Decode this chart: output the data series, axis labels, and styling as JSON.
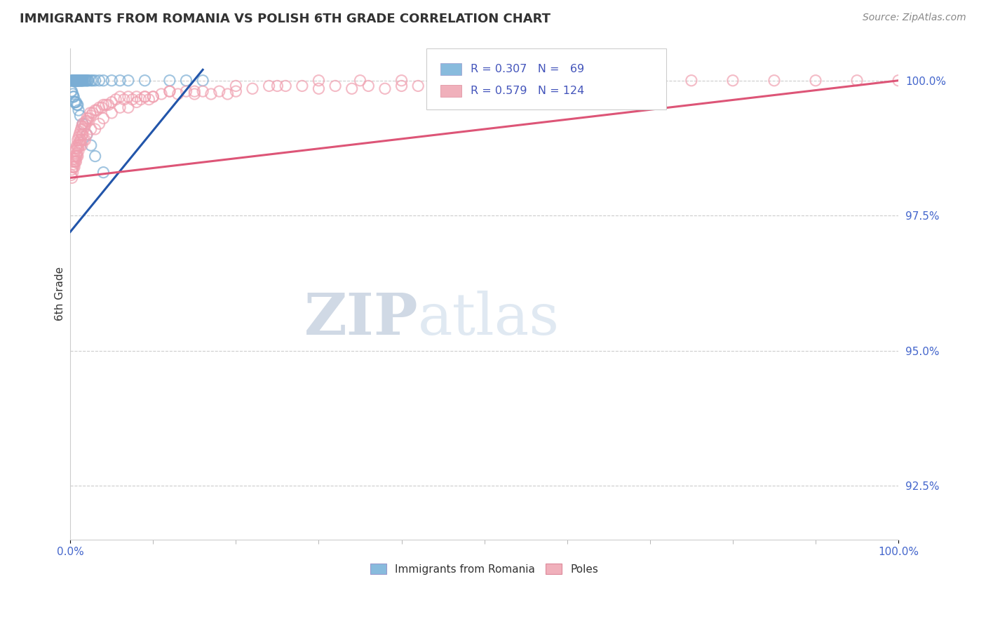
{
  "title": "IMMIGRANTS FROM ROMANIA VS POLISH 6TH GRADE CORRELATION CHART",
  "source_text": "Source: ZipAtlas.com",
  "ylabel": "6th Grade",
  "xlim": [
    0.0,
    1.0
  ],
  "ylim": [
    0.915,
    1.006
  ],
  "yticks": [
    0.925,
    0.95,
    0.975,
    1.0
  ],
  "ytick_labels": [
    "92.5%",
    "95.0%",
    "97.5%",
    "100.0%"
  ],
  "xtick_labels": [
    "0.0%",
    "100.0%"
  ],
  "blue_color": "#7aadd4",
  "pink_color": "#f0a0b0",
  "trend_blue": "#2255aa",
  "trend_pink": "#dd5577",
  "watermark_text": "ZIPatlas",
  "watermark_color": "#c8d8ea",
  "blue_color_legend": "#88bbdd",
  "pink_color_legend": "#f0b0bb",
  "background_color": "#ffffff",
  "grid_color": "#cccccc",
  "blue_x": [
    0.002,
    0.003,
    0.003,
    0.004,
    0.004,
    0.005,
    0.005,
    0.005,
    0.006,
    0.006,
    0.006,
    0.007,
    0.007,
    0.007,
    0.008,
    0.008,
    0.008,
    0.009,
    0.009,
    0.009,
    0.01,
    0.01,
    0.01,
    0.011,
    0.011,
    0.012,
    0.012,
    0.013,
    0.013,
    0.014,
    0.014,
    0.015,
    0.015,
    0.016,
    0.017,
    0.018,
    0.019,
    0.02,
    0.021,
    0.022,
    0.025,
    0.027,
    0.03,
    0.035,
    0.04,
    0.05,
    0.06,
    0.07,
    0.09,
    0.12,
    0.14,
    0.16,
    0.001,
    0.002,
    0.003,
    0.004,
    0.004,
    0.005,
    0.006,
    0.007,
    0.008,
    0.009,
    0.01,
    0.012,
    0.015,
    0.02,
    0.025,
    0.03,
    0.04
  ],
  "blue_y": [
    1.0,
    1.0,
    1.0,
    1.0,
    1.0,
    1.0,
    1.0,
    1.0,
    1.0,
    1.0,
    1.0,
    1.0,
    1.0,
    1.0,
    1.0,
    1.0,
    1.0,
    1.0,
    1.0,
    1.0,
    1.0,
    1.0,
    1.0,
    1.0,
    1.0,
    1.0,
    1.0,
    1.0,
    1.0,
    1.0,
    1.0,
    1.0,
    1.0,
    1.0,
    1.0,
    1.0,
    1.0,
    1.0,
    1.0,
    1.0,
    1.0,
    1.0,
    1.0,
    1.0,
    1.0,
    1.0,
    1.0,
    1.0,
    1.0,
    1.0,
    1.0,
    1.0,
    0.998,
    0.998,
    0.9975,
    0.997,
    0.997,
    0.996,
    0.996,
    0.996,
    0.9955,
    0.9955,
    0.9945,
    0.9935,
    0.992,
    0.99,
    0.988,
    0.986,
    0.983
  ],
  "pink_x": [
    0.001,
    0.002,
    0.003,
    0.003,
    0.004,
    0.004,
    0.005,
    0.005,
    0.006,
    0.006,
    0.007,
    0.007,
    0.008,
    0.008,
    0.009,
    0.009,
    0.01,
    0.01,
    0.011,
    0.011,
    0.012,
    0.012,
    0.013,
    0.013,
    0.014,
    0.014,
    0.015,
    0.015,
    0.016,
    0.017,
    0.018,
    0.019,
    0.02,
    0.021,
    0.022,
    0.024,
    0.025,
    0.027,
    0.03,
    0.032,
    0.035,
    0.038,
    0.04,
    0.043,
    0.046,
    0.05,
    0.055,
    0.06,
    0.065,
    0.07,
    0.075,
    0.08,
    0.085,
    0.09,
    0.095,
    0.1,
    0.11,
    0.12,
    0.13,
    0.14,
    0.15,
    0.16,
    0.17,
    0.18,
    0.19,
    0.2,
    0.22,
    0.24,
    0.26,
    0.28,
    0.3,
    0.32,
    0.34,
    0.36,
    0.38,
    0.4,
    0.42,
    0.44,
    0.46,
    0.48,
    0.5,
    0.55,
    0.6,
    0.65,
    0.7,
    0.75,
    0.8,
    0.85,
    0.9,
    0.95,
    1.0,
    0.002,
    0.003,
    0.004,
    0.005,
    0.006,
    0.007,
    0.008,
    0.009,
    0.01,
    0.012,
    0.014,
    0.016,
    0.018,
    0.02,
    0.025,
    0.03,
    0.035,
    0.04,
    0.05,
    0.06,
    0.07,
    0.08,
    0.09,
    0.1,
    0.12,
    0.15,
    0.2,
    0.25,
    0.3,
    0.35,
    0.4,
    0.5,
    0.6
  ],
  "pink_y": [
    0.9825,
    0.9835,
    0.984,
    0.985,
    0.9845,
    0.9855,
    0.985,
    0.986,
    0.9855,
    0.987,
    0.986,
    0.9875,
    0.9865,
    0.988,
    0.9875,
    0.989,
    0.988,
    0.9895,
    0.9885,
    0.99,
    0.989,
    0.9905,
    0.989,
    0.991,
    0.99,
    0.9915,
    0.99,
    0.992,
    0.991,
    0.9915,
    0.992,
    0.9925,
    0.993,
    0.9925,
    0.993,
    0.994,
    0.9935,
    0.994,
    0.9945,
    0.9945,
    0.995,
    0.995,
    0.9955,
    0.9955,
    0.9955,
    0.996,
    0.9965,
    0.997,
    0.9965,
    0.997,
    0.9965,
    0.997,
    0.9965,
    0.997,
    0.9965,
    0.997,
    0.9975,
    0.998,
    0.9975,
    0.998,
    0.9975,
    0.998,
    0.9975,
    0.998,
    0.9975,
    0.998,
    0.9985,
    0.999,
    0.999,
    0.999,
    0.9985,
    0.999,
    0.9985,
    0.999,
    0.9985,
    0.999,
    0.999,
    0.999,
    0.999,
    0.9995,
    0.9995,
    1.0,
    1.0,
    1.0,
    1.0,
    1.0,
    1.0,
    1.0,
    1.0,
    1.0,
    1.0,
    0.982,
    0.983,
    0.984,
    0.984,
    0.985,
    0.985,
    0.986,
    0.986,
    0.987,
    0.988,
    0.988,
    0.989,
    0.989,
    0.99,
    0.991,
    0.991,
    0.992,
    0.993,
    0.994,
    0.995,
    0.995,
    0.996,
    0.997,
    0.997,
    0.998,
    0.998,
    0.999,
    0.999,
    1.0,
    1.0,
    1.0,
    1.0,
    1.0
  ]
}
